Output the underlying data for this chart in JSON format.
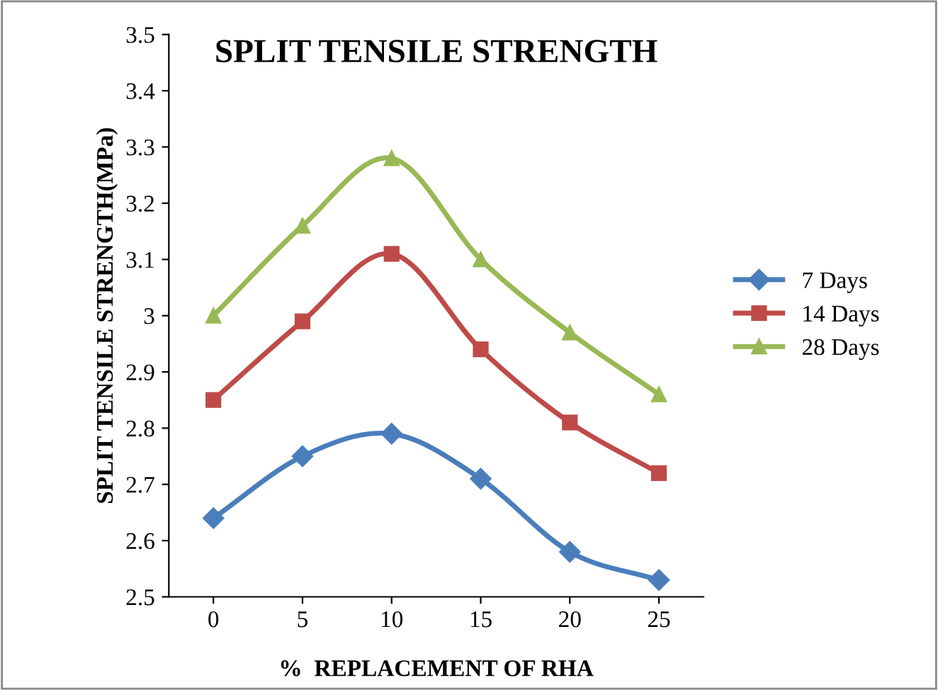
{
  "chart_data": {
    "type": "line",
    "title": "SPLIT TENSILE STRENGTH",
    "xlabel": "%  REPLACEMENT OF RHA",
    "ylabel": "SPLIT TENSILE STRENGTH(MPa)",
    "categories": [
      "0",
      "5",
      "10",
      "15",
      "20",
      "25"
    ],
    "series": [
      {
        "name": "7 Days",
        "color": "#4a7ebb",
        "marker": "diamond",
        "values": [
          2.64,
          2.75,
          2.79,
          2.71,
          2.58,
          2.53
        ]
      },
      {
        "name": "14 Days",
        "color": "#be4b48",
        "marker": "square",
        "values": [
          2.85,
          2.99,
          3.11,
          2.94,
          2.81,
          2.72
        ]
      },
      {
        "name": "28 Days",
        "color": "#98b954",
        "marker": "triangle",
        "values": [
          3.0,
          3.16,
          3.28,
          3.1,
          2.97,
          2.86
        ]
      }
    ],
    "ylim": [
      2.5,
      3.5
    ],
    "yticks": [
      2.5,
      2.6,
      2.7,
      2.8,
      2.9,
      3,
      3.1,
      3.2,
      3.3,
      3.4,
      3.5
    ],
    "grid": false,
    "legend": "right",
    "line_style": "solid"
  }
}
